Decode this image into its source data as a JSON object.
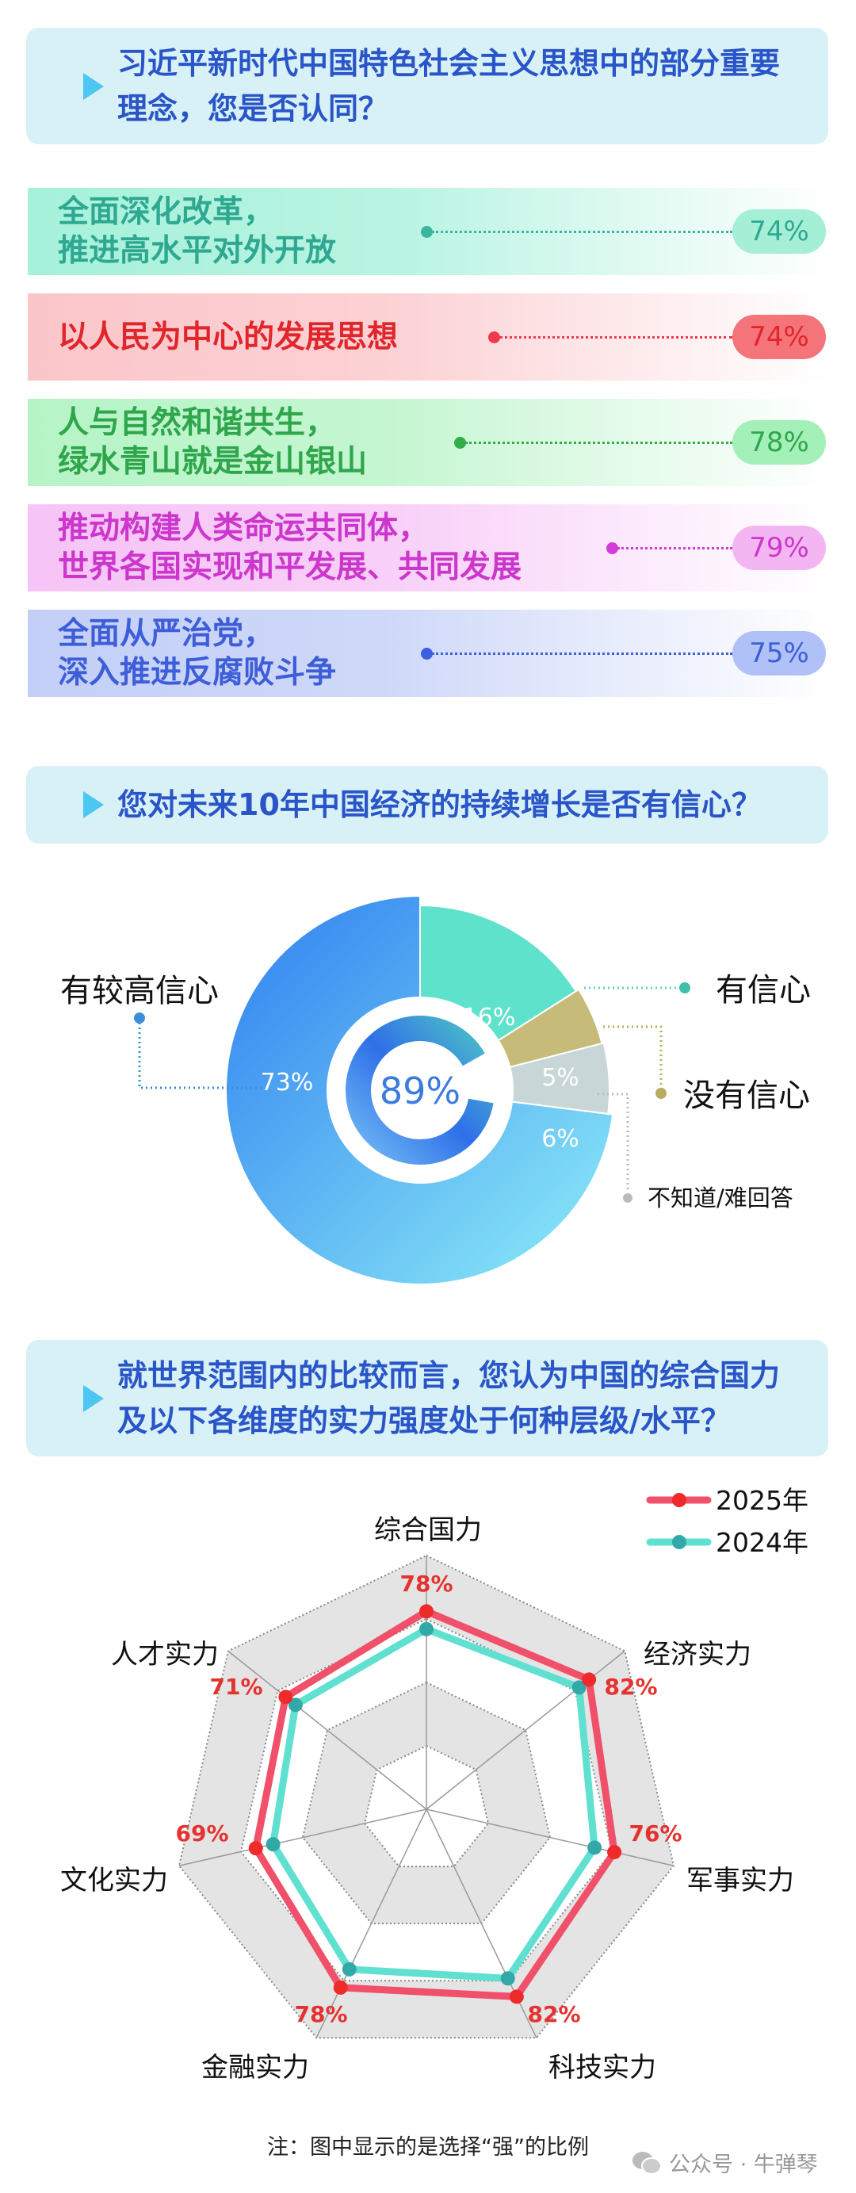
{
  "section1": {
    "question": "习近平新时代中国特色社会主义思想中的部分重要理念，您是否认同？",
    "items": [
      {
        "lines": [
          "全面深化改革，",
          "推进高水平对外开放"
        ],
        "value": "74%",
        "text_color": "#2ea890",
        "bg_color": "#a6f1da",
        "pill_color": "#a4efd6",
        "dot_color": "#3ab5a0"
      },
      {
        "lines": [
          "以人民为中心的发展思想"
        ],
        "value": "74%",
        "text_color": "#e0262b",
        "bg_color": "#fbc6ca",
        "pill_color": "#f47479",
        "dot_color": "#ee3b4b"
      },
      {
        "lines": [
          "人与自然和谐共生，",
          "绿水青山就是金山银山"
        ],
        "value": "78%",
        "text_color": "#2fa64c",
        "bg_color": "#b6f4c6",
        "pill_color": "#a3f0b8",
        "dot_color": "#2fae4a"
      },
      {
        "lines": [
          "推动构建人类命运共同体，",
          "世界各国实现和平发展、共同发展"
        ],
        "value": "79%",
        "text_color": "#cc36cc",
        "bg_color": "#f6c4f6",
        "pill_color": "#f3b6f2",
        "dot_color": "#d33ad6"
      },
      {
        "lines": [
          "全面从严治党，",
          "深入推进反腐败斗争"
        ],
        "value": "75%",
        "text_color": "#3d5ed8",
        "bg_color": "#c3cff7",
        "pill_color": "#b0c1f7",
        "dot_color": "#3d5ee0"
      }
    ]
  },
  "section2": {
    "question": "您对未来10年中国经济的持续增长是否有信心？"
  },
  "section3": {
    "question": "就世界范围内的比较而言，您认为中国的综合国力及以下各维度的实力强度处于何种层级/水平？"
  },
  "chart_data": [
    {
      "type": "pie",
      "donut_center_value": "89%",
      "donut_center_fraction": 0.89,
      "slices": [
        {
          "label": "有信心",
          "value": 16,
          "color": "#5fe2cc"
        },
        {
          "label": "没有信心",
          "value": 5,
          "color": "#c6bb78"
        },
        {
          "label": "不知道/难回答",
          "value": 6,
          "color": "#c9d6d8"
        },
        {
          "label": "有较高信心",
          "value": 73,
          "color": "#3f96f0"
        }
      ],
      "value_labels": [
        "16%",
        "5%",
        "6%",
        "73%"
      ]
    },
    {
      "type": "radar",
      "axes": [
        "综合国力",
        "经济实力",
        "军事实力",
        "科技实力",
        "金融实力",
        "文化实力",
        "人才实力"
      ],
      "range": [
        0,
        100
      ],
      "series": [
        {
          "name": "2025年",
          "values": [
            78,
            82,
            76,
            82,
            78,
            69,
            71
          ],
          "color": "#f0506a",
          "marker_color": "#ee2a2a",
          "labeled": true
        },
        {
          "name": "2024年",
          "values": [
            71,
            77,
            68,
            74,
            70,
            62,
            66
          ],
          "color": "#5fe0d0",
          "marker_color": "#33a8a8",
          "labeled": false
        }
      ],
      "legend": "top-right",
      "note": "注：图中显示的是选择“强”的比例"
    }
  ],
  "watermark": "公众号 · 牛弹琴"
}
